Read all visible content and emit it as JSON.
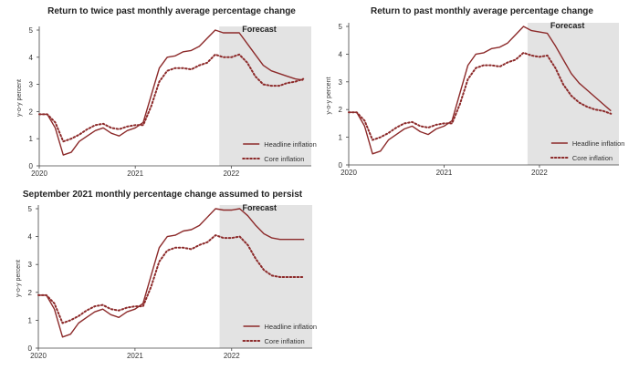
{
  "colors": {
    "headline": "#8c2a2a",
    "core": "#8c2a2a",
    "forecast_shade": "#e3e3e3",
    "axis": "#444444"
  },
  "chart_data": [
    {
      "type": "line",
      "title": "Return to twice past monthly average percentage change",
      "ylabel": "y-o-y percent",
      "ylim": [
        0,
        5
      ],
      "y_ticks": [
        "0",
        "1",
        "2",
        "3",
        "4",
        "5"
      ],
      "x_ticks": [
        "2020",
        "2021",
        "2022"
      ],
      "forecast_label": "Forecast",
      "legend_position": "bottom-right",
      "grid": false,
      "series": [
        {
          "name": "Headline inflation",
          "style": "solid",
          "x": [
            "2020-01",
            "2020-02",
            "2020-03",
            "2020-04",
            "2020-05",
            "2020-06",
            "2020-07",
            "2020-08",
            "2020-09",
            "2020-10",
            "2020-11",
            "2020-12",
            "2021-01",
            "2021-02",
            "2021-03",
            "2021-04",
            "2021-05",
            "2021-06",
            "2021-07",
            "2021-08",
            "2021-09",
            "2021-10",
            "2021-11",
            "2021-12",
            "2022-01",
            "2022-02",
            "2022-03",
            "2022-04",
            "2022-05",
            "2022-06",
            "2022-07",
            "2022-08",
            "2022-09",
            "2022-10"
          ],
          "values": [
            1.9,
            1.9,
            1.4,
            0.4,
            0.5,
            0.9,
            1.1,
            1.3,
            1.4,
            1.2,
            1.1,
            1.3,
            1.4,
            1.6,
            2.6,
            3.6,
            4.0,
            4.05,
            4.2,
            4.25,
            4.4,
            4.7,
            5.0,
            4.9,
            4.9,
            4.9,
            4.5,
            4.1,
            3.7,
            3.5,
            3.4,
            3.3,
            3.2,
            3.15
          ]
        },
        {
          "name": "Core inflation",
          "style": "dotted",
          "x": [
            "2020-01",
            "2020-02",
            "2020-03",
            "2020-04",
            "2020-05",
            "2020-06",
            "2020-07",
            "2020-08",
            "2020-09",
            "2020-10",
            "2020-11",
            "2020-12",
            "2021-01",
            "2021-02",
            "2021-03",
            "2021-04",
            "2021-05",
            "2021-06",
            "2021-07",
            "2021-08",
            "2021-09",
            "2021-10",
            "2021-11",
            "2021-12",
            "2022-01",
            "2022-02",
            "2022-03",
            "2022-04",
            "2022-05",
            "2022-06",
            "2022-07",
            "2022-08",
            "2022-09",
            "2022-10"
          ],
          "values": [
            1.9,
            1.9,
            1.6,
            0.9,
            1.0,
            1.15,
            1.35,
            1.5,
            1.55,
            1.4,
            1.35,
            1.45,
            1.5,
            1.5,
            2.2,
            3.1,
            3.5,
            3.6,
            3.6,
            3.55,
            3.7,
            3.8,
            4.1,
            4.0,
            4.0,
            4.1,
            3.8,
            3.3,
            3.0,
            2.95,
            2.95,
            3.05,
            3.1,
            3.2
          ]
        }
      ]
    },
    {
      "type": "line",
      "title": "Return to past monthly average percentage change",
      "ylabel": "y-o-y percent",
      "ylim": [
        0,
        5
      ],
      "y_ticks": [
        "0",
        "1",
        "2",
        "3",
        "4",
        "5"
      ],
      "x_ticks": [
        "2020",
        "2021",
        "2022"
      ],
      "forecast_label": "Forecast",
      "legend_position": "bottom-right",
      "grid": false,
      "series": [
        {
          "name": "Headline inflation",
          "style": "solid",
          "x": [
            "2020-01",
            "2020-02",
            "2020-03",
            "2020-04",
            "2020-05",
            "2020-06",
            "2020-07",
            "2020-08",
            "2020-09",
            "2020-10",
            "2020-11",
            "2020-12",
            "2021-01",
            "2021-02",
            "2021-03",
            "2021-04",
            "2021-05",
            "2021-06",
            "2021-07",
            "2021-08",
            "2021-09",
            "2021-10",
            "2021-11",
            "2021-12",
            "2022-01",
            "2022-02",
            "2022-03",
            "2022-04",
            "2022-05",
            "2022-06",
            "2022-07",
            "2022-08",
            "2022-09",
            "2022-10"
          ],
          "values": [
            1.9,
            1.9,
            1.4,
            0.4,
            0.5,
            0.9,
            1.1,
            1.3,
            1.4,
            1.2,
            1.1,
            1.3,
            1.4,
            1.6,
            2.6,
            3.6,
            4.0,
            4.05,
            4.2,
            4.25,
            4.4,
            4.7,
            5.0,
            4.85,
            4.8,
            4.75,
            4.3,
            3.8,
            3.3,
            2.95,
            2.7,
            2.45,
            2.2,
            1.95
          ]
        },
        {
          "name": "Core inflation",
          "style": "dotted",
          "x": [
            "2020-01",
            "2020-02",
            "2020-03",
            "2020-04",
            "2020-05",
            "2020-06",
            "2020-07",
            "2020-08",
            "2020-09",
            "2020-10",
            "2020-11",
            "2020-12",
            "2021-01",
            "2021-02",
            "2021-03",
            "2021-04",
            "2021-05",
            "2021-06",
            "2021-07",
            "2021-08",
            "2021-09",
            "2021-10",
            "2021-11",
            "2021-12",
            "2022-01",
            "2022-02",
            "2022-03",
            "2022-04",
            "2022-05",
            "2022-06",
            "2022-07",
            "2022-08",
            "2022-09",
            "2022-10"
          ],
          "values": [
            1.9,
            1.9,
            1.6,
            0.9,
            1.0,
            1.15,
            1.35,
            1.5,
            1.55,
            1.4,
            1.35,
            1.45,
            1.5,
            1.5,
            2.2,
            3.1,
            3.5,
            3.6,
            3.6,
            3.55,
            3.7,
            3.8,
            4.05,
            3.95,
            3.9,
            3.95,
            3.5,
            2.9,
            2.5,
            2.25,
            2.1,
            2.0,
            1.95,
            1.85
          ]
        }
      ]
    },
    {
      "type": "line",
      "title": "September 2021 monthly percentage change assumed to persist",
      "ylabel": "y-o-y percent",
      "ylim": [
        0,
        5
      ],
      "y_ticks": [
        "0",
        "1",
        "2",
        "3",
        "4",
        "5"
      ],
      "x_ticks": [
        "2020",
        "2021",
        "2022"
      ],
      "forecast_label": "Forecast",
      "legend_position": "bottom-right",
      "grid": false,
      "series": [
        {
          "name": "Headline inflation",
          "style": "solid",
          "x": [
            "2020-01",
            "2020-02",
            "2020-03",
            "2020-04",
            "2020-05",
            "2020-06",
            "2020-07",
            "2020-08",
            "2020-09",
            "2020-10",
            "2020-11",
            "2020-12",
            "2021-01",
            "2021-02",
            "2021-03",
            "2021-04",
            "2021-05",
            "2021-06",
            "2021-07",
            "2021-08",
            "2021-09",
            "2021-10",
            "2021-11",
            "2021-12",
            "2022-01",
            "2022-02",
            "2022-03",
            "2022-04",
            "2022-05",
            "2022-06",
            "2022-07",
            "2022-08",
            "2022-09",
            "2022-10"
          ],
          "values": [
            1.9,
            1.9,
            1.4,
            0.4,
            0.5,
            0.9,
            1.1,
            1.3,
            1.4,
            1.2,
            1.1,
            1.3,
            1.4,
            1.6,
            2.6,
            3.6,
            4.0,
            4.05,
            4.2,
            4.25,
            4.4,
            4.7,
            5.0,
            4.95,
            4.95,
            5.0,
            4.75,
            4.4,
            4.1,
            3.95,
            3.9,
            3.9,
            3.9,
            3.9
          ]
        },
        {
          "name": "Core inflation",
          "style": "dotted",
          "x": [
            "2020-01",
            "2020-02",
            "2020-03",
            "2020-04",
            "2020-05",
            "2020-06",
            "2020-07",
            "2020-08",
            "2020-09",
            "2020-10",
            "2020-11",
            "2020-12",
            "2021-01",
            "2021-02",
            "2021-03",
            "2021-04",
            "2021-05",
            "2021-06",
            "2021-07",
            "2021-08",
            "2021-09",
            "2021-10",
            "2021-11",
            "2021-12",
            "2022-01",
            "2022-02",
            "2022-03",
            "2022-04",
            "2022-05",
            "2022-06",
            "2022-07",
            "2022-08",
            "2022-09",
            "2022-10"
          ],
          "values": [
            1.9,
            1.9,
            1.6,
            0.9,
            1.0,
            1.15,
            1.35,
            1.5,
            1.55,
            1.4,
            1.35,
            1.45,
            1.5,
            1.5,
            2.2,
            3.1,
            3.5,
            3.6,
            3.6,
            3.55,
            3.7,
            3.8,
            4.05,
            3.95,
            3.95,
            4.0,
            3.7,
            3.2,
            2.8,
            2.6,
            2.55,
            2.55,
            2.55,
            2.55
          ]
        }
      ]
    }
  ]
}
